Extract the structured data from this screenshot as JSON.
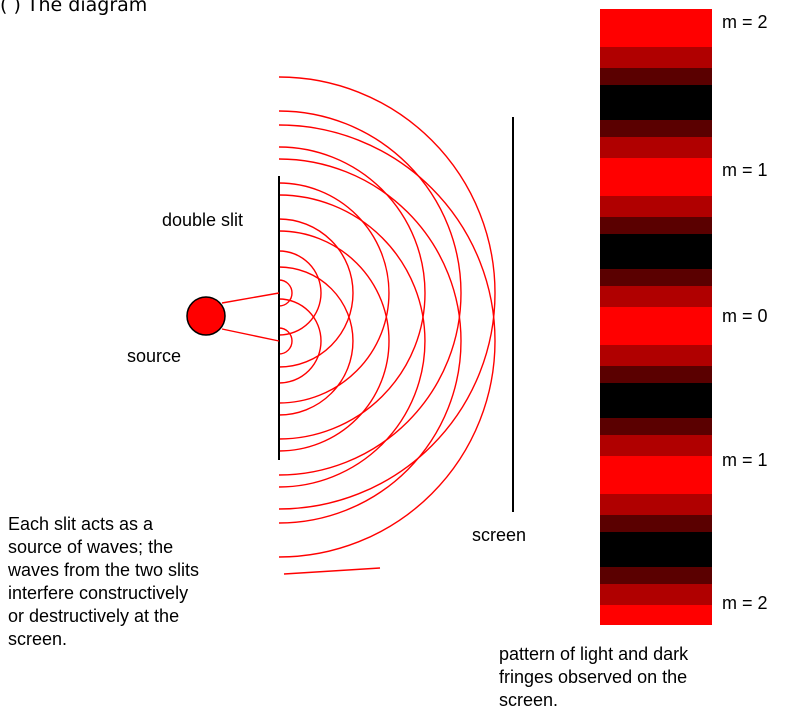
{
  "header_fragment": "(                 ) The diagram",
  "labels": {
    "double_slit": "double slit",
    "source": "source",
    "screen": "screen"
  },
  "caption_left": [
    "Each slit acts as a",
    "source of waves; the",
    "waves from the two slits",
    "interfere constructively",
    "or destructively at the",
    "screen."
  ],
  "caption_right": [
    "pattern of light and dark",
    "fringes observed on the",
    "screen."
  ],
  "orders": [
    "m = 2",
    "m = 1",
    "m = 0",
    "m = 1",
    "m = 2"
  ],
  "colors": {
    "wave": "#ff0000",
    "fringe_bright": "#ff0000",
    "fringe_mid": "#b00000",
    "fringe_dim": "#5a0000",
    "fringe_dark": "#000000",
    "source_fill": "#ff0000",
    "line": "#000000"
  }
}
